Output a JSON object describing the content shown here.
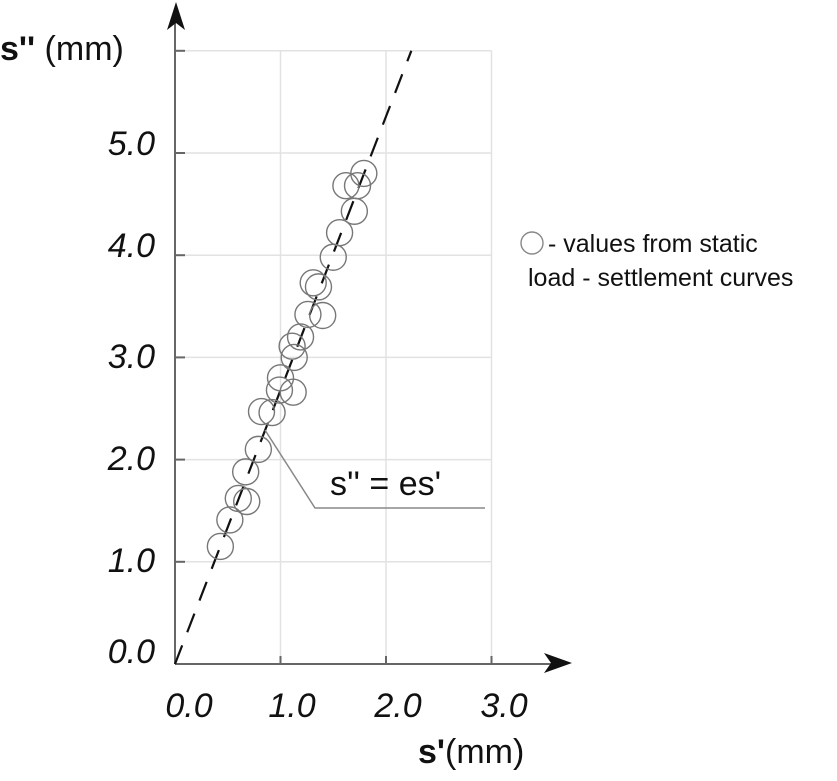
{
  "chart_data": {
    "type": "scatter",
    "title": "",
    "xlabel": "s' (mm)",
    "ylabel": "s'' (mm)",
    "xlabel_parts": {
      "symbol": "s'",
      "unit": "(mm)"
    },
    "ylabel_parts": {
      "symbol": "s''",
      "unit": "(mm)"
    },
    "xlim": [
      0,
      3.0
    ],
    "ylim": [
      0,
      6.0
    ],
    "x_ticks": [
      "0.0",
      "1.0",
      "2.0",
      "3.0"
    ],
    "y_ticks": [
      "0.0",
      "1.0",
      "2.0",
      "3.0",
      "4.0",
      "5.0"
    ],
    "grid": true,
    "legend": {
      "position": "right",
      "marker": "open-circle",
      "line1": "- values from static",
      "line2": "load - settlement curves"
    },
    "annotation": {
      "text": "s'' = es'",
      "target": "dashed regression line"
    },
    "fit_line": {
      "style": "dashed",
      "slope": 2.68,
      "intercept": 0.0,
      "x": [
        0,
        2.24
      ],
      "y": [
        0,
        6.0
      ]
    },
    "series": [
      {
        "name": "values from static load - settlement curves",
        "marker": "open-circle",
        "x": [
          0.43,
          0.52,
          0.6,
          0.68,
          0.67,
          0.79,
          0.82,
          0.92,
          0.99,
          1.12,
          1.0,
          1.13,
          1.11,
          1.19,
          1.26,
          1.4,
          1.31,
          1.36,
          1.5,
          1.56,
          1.7,
          1.62,
          1.73,
          1.79
        ],
        "y": [
          1.15,
          1.41,
          1.62,
          1.59,
          1.88,
          2.1,
          2.47,
          2.46,
          2.68,
          2.66,
          2.8,
          3.0,
          3.11,
          3.2,
          3.42,
          3.41,
          3.73,
          3.69,
          3.98,
          4.22,
          4.43,
          4.68,
          4.68,
          4.8
        ]
      }
    ]
  },
  "colors": {
    "axis": "#666666",
    "grid": "#e2e2e2",
    "marker": "#777777",
    "fit_line": "#111111",
    "text": "#111111",
    "arrow": "#111111"
  }
}
